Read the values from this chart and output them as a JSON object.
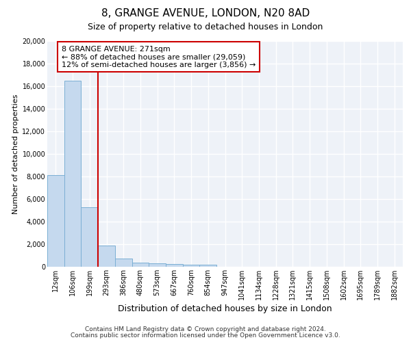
{
  "title1": "8, GRANGE AVENUE, LONDON, N20 8AD",
  "title2": "Size of property relative to detached houses in London",
  "xlabel": "Distribution of detached houses by size in London",
  "ylabel": "Number of detached properties",
  "categories": [
    "12sqm",
    "106sqm",
    "199sqm",
    "293sqm",
    "386sqm",
    "480sqm",
    "573sqm",
    "667sqm",
    "760sqm",
    "854sqm",
    "947sqm",
    "1041sqm",
    "1134sqm",
    "1228sqm",
    "1321sqm",
    "1415sqm",
    "1508sqm",
    "1602sqm",
    "1695sqm",
    "1789sqm",
    "1882sqm"
  ],
  "values": [
    8100,
    16500,
    5300,
    1850,
    750,
    380,
    290,
    245,
    200,
    180,
    0,
    0,
    0,
    0,
    0,
    0,
    0,
    0,
    0,
    0,
    0
  ],
  "bar_color": "#c5d9ee",
  "bar_edge_color": "#7bafd4",
  "vline_color": "#cc0000",
  "vline_bar_idx": 2,
  "annotation_line1": "8 GRANGE AVENUE: 271sqm",
  "annotation_line2": "← 88% of detached houses are smaller (29,059)",
  "annotation_line3": "12% of semi-detached houses are larger (3,856) →",
  "annotation_box_edgecolor": "#cc0000",
  "ylim": [
    0,
    20000
  ],
  "yticks": [
    0,
    2000,
    4000,
    6000,
    8000,
    10000,
    12000,
    14000,
    16000,
    18000,
    20000
  ],
  "footnote1": "Contains HM Land Registry data © Crown copyright and database right 2024.",
  "footnote2": "Contains public sector information licensed under the Open Government Licence v3.0.",
  "fig_bg_color": "#ffffff",
  "plot_bg_color": "#eef2f8",
  "grid_color": "#ffffff",
  "title1_fontsize": 11,
  "title2_fontsize": 9,
  "tick_fontsize": 7,
  "ylabel_fontsize": 8,
  "xlabel_fontsize": 9,
  "footnote_fontsize": 6.5,
  "annotation_fontsize": 8
}
